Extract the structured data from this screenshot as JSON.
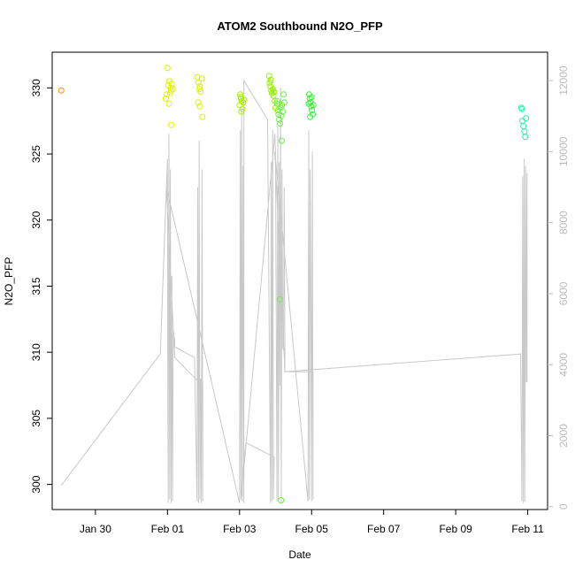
{
  "chart_data": {
    "type": "scatter",
    "title": "ATOM2 Southbound N2O_PFP",
    "xlabel": "Date",
    "ylabel": "N2O_PFP",
    "x_ticks": [
      "Jan 30",
      "Feb 01",
      "Feb 03",
      "Feb 05",
      "Feb 07",
      "Feb 09",
      "Feb 11"
    ],
    "x_tick_days": [
      0,
      2,
      4,
      6,
      8,
      10,
      12
    ],
    "xlim_days": [
      -1.2,
      12.55
    ],
    "ylim": [
      298.1,
      332.7
    ],
    "y_ticks": [
      300,
      305,
      310,
      315,
      320,
      325,
      330
    ],
    "y2lim": [
      -80,
      12800
    ],
    "y2_ticks": [
      0,
      2000,
      4000,
      6000,
      8000,
      10000,
      12000
    ],
    "y2_color": "#bbbbbb",
    "points": [
      {
        "x": -0.95,
        "y": 329.8,
        "color": "#ff8c00"
      },
      {
        "x": 2.0,
        "y": 331.5,
        "color": "#e0f000"
      },
      {
        "x": 2.02,
        "y": 330.2,
        "color": "#e0f000"
      },
      {
        "x": 2.05,
        "y": 330.5,
        "color": "#e0f000"
      },
      {
        "x": 2.08,
        "y": 330.0,
        "color": "#e0f000"
      },
      {
        "x": 1.98,
        "y": 329.5,
        "color": "#e0f000"
      },
      {
        "x": 2.1,
        "y": 329.8,
        "color": "#e0f000"
      },
      {
        "x": 2.12,
        "y": 330.3,
        "color": "#e0f000"
      },
      {
        "x": 1.95,
        "y": 329.2,
        "color": "#e0f000"
      },
      {
        "x": 2.04,
        "y": 328.8,
        "color": "#e0f000"
      },
      {
        "x": 2.07,
        "y": 329.6,
        "color": "#e0f000"
      },
      {
        "x": 2.15,
        "y": 329.9,
        "color": "#e0f000"
      },
      {
        "x": 2.1,
        "y": 327.2,
        "color": "#e0f000"
      },
      {
        "x": 2.83,
        "y": 330.8,
        "color": "#d8f000"
      },
      {
        "x": 2.86,
        "y": 330.4,
        "color": "#d8f000"
      },
      {
        "x": 2.88,
        "y": 329.9,
        "color": "#d8f000"
      },
      {
        "x": 2.9,
        "y": 330.1,
        "color": "#d8f000"
      },
      {
        "x": 2.92,
        "y": 329.7,
        "color": "#d8f000"
      },
      {
        "x": 2.85,
        "y": 328.9,
        "color": "#d8f000"
      },
      {
        "x": 2.9,
        "y": 328.6,
        "color": "#d8f000"
      },
      {
        "x": 2.95,
        "y": 330.7,
        "color": "#d8f000"
      },
      {
        "x": 2.97,
        "y": 327.8,
        "color": "#d8f000"
      },
      {
        "x": 4.02,
        "y": 329.5,
        "color": "#a8f000"
      },
      {
        "x": 4.04,
        "y": 329.2,
        "color": "#a8f000"
      },
      {
        "x": 4.06,
        "y": 329.0,
        "color": "#a8f000"
      },
      {
        "x": 4.0,
        "y": 328.7,
        "color": "#a8f000"
      },
      {
        "x": 4.08,
        "y": 328.4,
        "color": "#a8f000"
      },
      {
        "x": 4.03,
        "y": 329.3,
        "color": "#a8f000"
      },
      {
        "x": 4.1,
        "y": 328.9,
        "color": "#a8f000"
      },
      {
        "x": 4.05,
        "y": 328.2,
        "color": "#a8f000"
      },
      {
        "x": 4.12,
        "y": 329.1,
        "color": "#a8f000"
      },
      {
        "x": 4.82,
        "y": 330.9,
        "color": "#90f000"
      },
      {
        "x": 4.84,
        "y": 330.4,
        "color": "#90f000"
      },
      {
        "x": 4.86,
        "y": 330.1,
        "color": "#90f000"
      },
      {
        "x": 4.88,
        "y": 329.8,
        "color": "#90f000"
      },
      {
        "x": 4.9,
        "y": 329.6,
        "color": "#90f000"
      },
      {
        "x": 4.92,
        "y": 329.9,
        "color": "#90f000"
      },
      {
        "x": 4.94,
        "y": 329.4,
        "color": "#90f000"
      },
      {
        "x": 4.96,
        "y": 329.7,
        "color": "#90f000"
      },
      {
        "x": 4.98,
        "y": 329.0,
        "color": "#90f000"
      },
      {
        "x": 5.0,
        "y": 328.5,
        "color": "#90f000"
      },
      {
        "x": 4.87,
        "y": 330.6,
        "color": "#90f000"
      },
      {
        "x": 5.04,
        "y": 328.8,
        "color": "#66f040"
      },
      {
        "x": 5.06,
        "y": 328.3,
        "color": "#66f040"
      },
      {
        "x": 5.08,
        "y": 328.0,
        "color": "#66f040"
      },
      {
        "x": 5.1,
        "y": 327.6,
        "color": "#66f040"
      },
      {
        "x": 5.12,
        "y": 327.3,
        "color": "#66f040"
      },
      {
        "x": 5.05,
        "y": 329.0,
        "color": "#66f040"
      },
      {
        "x": 5.14,
        "y": 328.5,
        "color": "#66f040"
      },
      {
        "x": 5.16,
        "y": 327.9,
        "color": "#66f040"
      },
      {
        "x": 5.18,
        "y": 328.7,
        "color": "#66f040"
      },
      {
        "x": 5.2,
        "y": 328.2,
        "color": "#66f040"
      },
      {
        "x": 5.22,
        "y": 329.5,
        "color": "#66f040"
      },
      {
        "x": 5.17,
        "y": 326.0,
        "color": "#66f040"
      },
      {
        "x": 5.12,
        "y": 314.0,
        "color": "#66f040"
      },
      {
        "x": 5.15,
        "y": 298.8,
        "color": "#66f040"
      },
      {
        "x": 5.24,
        "y": 328.9,
        "color": "#66f040"
      },
      {
        "x": 5.93,
        "y": 329.5,
        "color": "#30f030"
      },
      {
        "x": 5.95,
        "y": 329.2,
        "color": "#30f030"
      },
      {
        "x": 5.97,
        "y": 328.9,
        "color": "#30f030"
      },
      {
        "x": 5.99,
        "y": 328.6,
        "color": "#30f030"
      },
      {
        "x": 6.01,
        "y": 328.3,
        "color": "#30f030"
      },
      {
        "x": 6.03,
        "y": 328.0,
        "color": "#30f030"
      },
      {
        "x": 5.96,
        "y": 327.8,
        "color": "#30f030"
      },
      {
        "x": 6.0,
        "y": 329.3,
        "color": "#30f030"
      },
      {
        "x": 6.05,
        "y": 328.7,
        "color": "#30f030"
      },
      {
        "x": 5.92,
        "y": 328.8,
        "color": "#30f030"
      },
      {
        "x": 11.82,
        "y": 328.5,
        "color": "#20f0b0"
      },
      {
        "x": 11.85,
        "y": 327.5,
        "color": "#20f0b0"
      },
      {
        "x": 11.88,
        "y": 327.1,
        "color": "#20f0b0"
      },
      {
        "x": 11.91,
        "y": 326.7,
        "color": "#20f0b0"
      },
      {
        "x": 11.93,
        "y": 326.3,
        "color": "#20f0b0"
      },
      {
        "x": 11.95,
        "y": 327.7,
        "color": "#20f0b0"
      },
      {
        "x": 11.84,
        "y": 328.4,
        "color": "#20f0b0"
      }
    ],
    "right_series": {
      "name": "",
      "color": "#c8c8c8",
      "x": [
        -0.95,
        1.8,
        2.0,
        2.02,
        2.04,
        2.06,
        2.08,
        2.1,
        2.12,
        2.14,
        2.16,
        2.18,
        2.2,
        2.2,
        2.75,
        2.82,
        2.84,
        2.86,
        2.88,
        2.9,
        2.92,
        2.94,
        2.96,
        2.98,
        2.98,
        2.2,
        1.97,
        4.0,
        4.02,
        4.04,
        4.06,
        4.08,
        4.1,
        4.12,
        4.12,
        4.78,
        4.86,
        4.88,
        4.9,
        4.92,
        4.94,
        4.96,
        4.96,
        4.18,
        4.08,
        4.05,
        4.98,
        5.0,
        5.04,
        5.06,
        5.08,
        5.1,
        5.12,
        5.14,
        5.16,
        5.18,
        5.2,
        5.22,
        5.24,
        5.26,
        5.26,
        4.98,
        5.9,
        5.92,
        5.94,
        5.96,
        5.98,
        6.0,
        6.02,
        6.04,
        6.04,
        5.24,
        11.8,
        11.84,
        11.86,
        11.88,
        11.9,
        11.92,
        11.94,
        11.96,
        11.98,
        11.98
      ],
      "y": [
        600,
        4300,
        9800,
        100,
        10500,
        200,
        9500,
        100,
        6500,
        150,
        5000,
        4800,
        4700,
        4500,
        4200,
        150,
        9000,
        100,
        10300,
        200,
        3600,
        100,
        9500,
        150,
        3400,
        4200,
        9000,
        100,
        10600,
        200,
        11200,
        150,
        9600,
        100,
        12000,
        10900,
        100,
        9700,
        150,
        10600,
        200,
        1400,
        1400,
        1800,
        800,
        300,
        10500,
        9900,
        150,
        10700,
        200,
        9700,
        3400,
        11800,
        100,
        9500,
        4500,
        4400,
        9000,
        3800,
        3800,
        10000,
        150,
        10600,
        200,
        9500,
        6000,
        150,
        10000,
        200,
        3800,
        3800,
        4300,
        150,
        9300,
        100,
        9800,
        150,
        9600,
        3500,
        9400,
        3500
      ]
    }
  }
}
